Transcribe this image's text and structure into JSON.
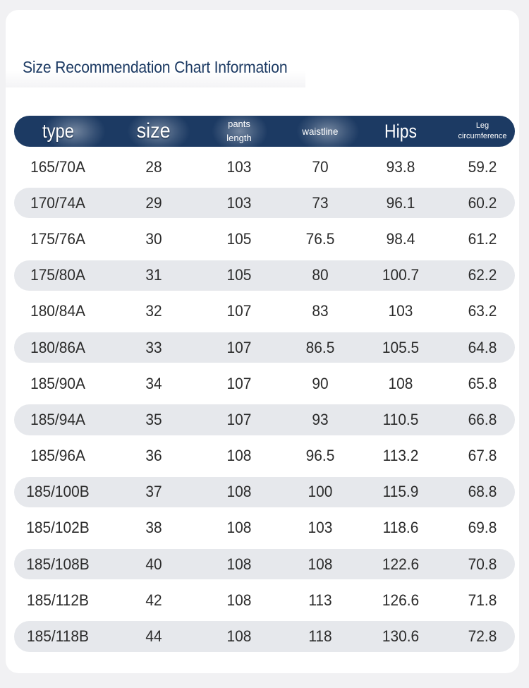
{
  "title": "Size Recommendation Chart Information",
  "columns": {
    "type": "type",
    "size": "size",
    "pants_length_1": "pants",
    "pants_length_2": "length",
    "waistline": "waistline",
    "hips": "Hips",
    "leg_1": "Leg",
    "leg_2": "circumference"
  },
  "rows": [
    {
      "type": "165/70A",
      "size": "28",
      "pants_length": "103",
      "waistline": "70",
      "hips": "93.8",
      "leg": "59.2"
    },
    {
      "type": "170/74A",
      "size": "29",
      "pants_length": "103",
      "waistline": "73",
      "hips": "96.1",
      "leg": "60.2"
    },
    {
      "type": "175/76A",
      "size": "30",
      "pants_length": "105",
      "waistline": "76.5",
      "hips": "98.4",
      "leg": "61.2"
    },
    {
      "type": "175/80A",
      "size": "31",
      "pants_length": "105",
      "waistline": "80",
      "hips": "100.7",
      "leg": "62.2"
    },
    {
      "type": "180/84A",
      "size": "32",
      "pants_length": "107",
      "waistline": "83",
      "hips": "103",
      "leg": "63.2"
    },
    {
      "type": "180/86A",
      "size": "33",
      "pants_length": "107",
      "waistline": "86.5",
      "hips": "105.5",
      "leg": "64.8"
    },
    {
      "type": "185/90A",
      "size": "34",
      "pants_length": "107",
      "waistline": "90",
      "hips": "108",
      "leg": "65.8"
    },
    {
      "type": "185/94A",
      "size": "35",
      "pants_length": "107",
      "waistline": "93",
      "hips": "110.5",
      "leg": "66.8"
    },
    {
      "type": "185/96A",
      "size": "36",
      "pants_length": "108",
      "waistline": "96.5",
      "hips": "113.2",
      "leg": "67.8"
    },
    {
      "type": "185/100B",
      "size": "37",
      "pants_length": "108",
      "waistline": "100",
      "hips": "115.9",
      "leg": "68.8"
    },
    {
      "type": "185/102B",
      "size": "38",
      "pants_length": "108",
      "waistline": "103",
      "hips": "118.6",
      "leg": "69.8"
    },
    {
      "type": "185/108B",
      "size": "40",
      "pants_length": "108",
      "waistline": "108",
      "hips": "122.6",
      "leg": "70.8"
    },
    {
      "type": "185/112B",
      "size": "42",
      "pants_length": "108",
      "waistline": "113",
      "hips": "126.6",
      "leg": "71.8"
    },
    {
      "type": "185/118B",
      "size": "44",
      "pants_length": "108",
      "waistline": "118",
      "hips": "130.6",
      "leg": "72.8"
    }
  ],
  "colors": {
    "header_bg": "#1c3a63",
    "title": "#1c3a63",
    "row_shade": "#e6e8ec",
    "page_bg": "#f1f1f3"
  }
}
